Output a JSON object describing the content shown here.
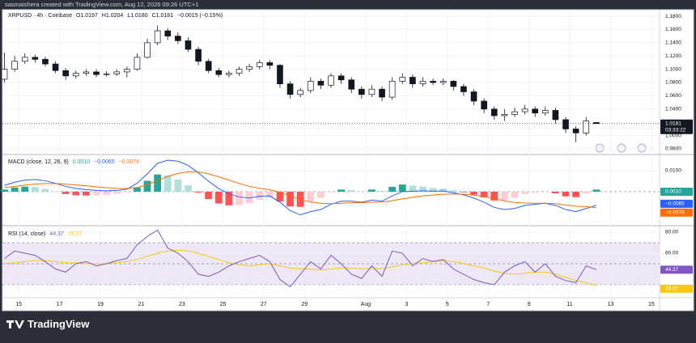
{
  "header": {
    "caption": "sasmaishera created with TradingView.com, Aug 12, 2026 09:26 UTC+1"
  },
  "footer": {
    "brand": "TradingView"
  },
  "chart_data": [
    {
      "type": "candlestick",
      "legend": [
        "XRPUSD · 4h · Coinbase",
        "O1.0197",
        "H1.0204",
        "L1.0180",
        "C1.0181",
        "−0.0015 (−0.15%)"
      ],
      "last_price_label": "1.0181",
      "countdown": "03:33:22",
      "xlim": [
        14.2,
        46.4
      ],
      "xticks": [
        15,
        17,
        19,
        21,
        23,
        25,
        27,
        29,
        {
          "value": 32,
          "label": "Aug"
        },
        {
          "value": 34,
          "label": "3"
        },
        {
          "value": 36,
          "label": "5"
        },
        {
          "value": 38,
          "label": "7"
        },
        {
          "value": 40,
          "label": "9"
        },
        {
          "value": 42,
          "label": "11"
        },
        {
          "value": 44,
          "label": "13"
        },
        {
          "value": 46,
          "label": "15"
        }
      ],
      "ylim": [
        0.9727,
        1.1898
      ],
      "yticks": [
        {
          "value": 1.18,
          "label": "1.1800"
        },
        {
          "value": 1.16,
          "label": "1.1600"
        },
        {
          "value": 1.14,
          "label": "1.1400"
        },
        {
          "value": 1.12,
          "label": "1.1200"
        },
        {
          "value": 1.1,
          "label": "1.1000"
        },
        {
          "value": 1.08,
          "label": "1.0800"
        },
        {
          "value": 1.06,
          "label": "1.0600"
        },
        {
          "value": 1.04,
          "label": "1.0400"
        },
        {
          "value": 1.02,
          "label": "1.0200"
        },
        {
          "value": 1.0,
          "label": "1.0000"
        },
        {
          "value": 0.98,
          "label": "0.9800"
        }
      ],
      "up_color": "#ffffff",
      "down_color": "#131722",
      "x": [
        14.3,
        14.8,
        15.3,
        15.8,
        16.3,
        16.8,
        17.3,
        17.8,
        18.3,
        18.8,
        19.3,
        19.8,
        20.3,
        20.8,
        21.3,
        21.8,
        22.3,
        22.8,
        23.3,
        23.8,
        24.3,
        24.8,
        25.3,
        25.8,
        26.3,
        26.8,
        27.3,
        27.8,
        28.3,
        28.8,
        29.3,
        29.8,
        30.3,
        30.8,
        31.3,
        31.8,
        32.3,
        32.8,
        33.3,
        33.8,
        34.3,
        34.8,
        35.3,
        35.8,
        36.3,
        36.8,
        37.3,
        37.8,
        38.3,
        38.8,
        39.3,
        39.8,
        40.3,
        40.8,
        41.3,
        41.8,
        42.3,
        42.8,
        43.3
      ],
      "candles": [
        [
          1.085,
          1.125,
          1.08,
          1.1
        ],
        [
          1.1,
          1.12,
          1.096,
          1.112
        ],
        [
          1.112,
          1.124,
          1.108,
          1.118
        ],
        [
          1.118,
          1.122,
          1.11,
          1.115
        ],
        [
          1.115,
          1.119,
          1.104,
          1.108
        ],
        [
          1.108,
          1.112,
          1.094,
          1.098
        ],
        [
          1.098,
          1.102,
          1.084,
          1.09
        ],
        [
          1.09,
          1.098,
          1.086,
          1.094
        ],
        [
          1.094,
          1.1,
          1.09,
          1.096
        ],
        [
          1.096,
          1.1,
          1.088,
          1.092
        ],
        [
          1.092,
          1.097,
          1.089,
          1.093
        ],
        [
          1.093,
          1.1,
          1.09,
          1.096
        ],
        [
          1.096,
          1.104,
          1.088,
          1.1
        ],
        [
          1.1,
          1.124,
          1.098,
          1.118
        ],
        [
          1.118,
          1.146,
          1.116,
          1.14
        ],
        [
          1.14,
          1.166,
          1.136,
          1.158
        ],
        [
          1.158,
          1.162,
          1.144,
          1.15
        ],
        [
          1.15,
          1.156,
          1.138,
          1.143
        ],
        [
          1.143,
          1.148,
          1.126,
          1.13
        ],
        [
          1.13,
          1.134,
          1.106,
          1.112
        ],
        [
          1.112,
          1.116,
          1.094,
          1.098
        ],
        [
          1.098,
          1.102,
          1.088,
          1.092
        ],
        [
          1.092,
          1.098,
          1.088,
          1.094
        ],
        [
          1.094,
          1.104,
          1.09,
          1.1
        ],
        [
          1.1,
          1.108,
          1.096,
          1.104
        ],
        [
          1.104,
          1.114,
          1.1,
          1.11
        ],
        [
          1.11,
          1.114,
          1.1,
          1.106
        ],
        [
          1.106,
          1.108,
          1.072,
          1.078
        ],
        [
          1.078,
          1.082,
          1.056,
          1.062
        ],
        [
          1.062,
          1.072,
          1.058,
          1.068
        ],
        [
          1.068,
          1.088,
          1.064,
          1.082
        ],
        [
          1.082,
          1.086,
          1.07,
          1.076
        ],
        [
          1.076,
          1.094,
          1.072,
          1.09
        ],
        [
          1.09,
          1.094,
          1.078,
          1.084
        ],
        [
          1.084,
          1.088,
          1.064,
          1.07
        ],
        [
          1.07,
          1.074,
          1.056,
          1.062
        ],
        [
          1.062,
          1.076,
          1.058,
          1.07
        ],
        [
          1.07,
          1.074,
          1.052,
          1.058
        ],
        [
          1.058,
          1.088,
          1.054,
          1.082
        ],
        [
          1.082,
          1.094,
          1.078,
          1.088
        ],
        [
          1.088,
          1.092,
          1.072,
          1.078
        ],
        [
          1.078,
          1.088,
          1.074,
          1.082
        ],
        [
          1.082,
          1.086,
          1.076,
          1.08
        ],
        [
          1.08,
          1.086,
          1.076,
          1.082
        ],
        [
          1.082,
          1.084,
          1.068,
          1.074
        ],
        [
          1.074,
          1.078,
          1.06,
          1.066
        ],
        [
          1.066,
          1.07,
          1.046,
          1.052
        ],
        [
          1.052,
          1.056,
          1.034,
          1.04
        ],
        [
          1.04,
          1.044,
          1.024,
          1.03
        ],
        [
          1.03,
          1.04,
          1.022,
          1.032
        ],
        [
          1.032,
          1.042,
          1.028,
          1.036
        ],
        [
          1.036,
          1.046,
          1.032,
          1.04
        ],
        [
          1.04,
          1.044,
          1.028,
          1.034
        ],
        [
          1.034,
          1.044,
          1.03,
          1.038
        ],
        [
          1.038,
          1.042,
          1.018,
          1.024
        ],
        [
          1.024,
          1.028,
          1.004,
          1.01
        ],
        [
          1.01,
          1.014,
          0.99,
          1.004
        ],
        [
          1.004,
          1.028,
          1.0,
          1.022
        ],
        [
          1.0197,
          1.0204,
          1.018,
          1.0181
        ]
      ]
    },
    {
      "type": "macd",
      "legend": [
        "MACD (close, 12, 26, 9)",
        "0.0010",
        "−0.0065",
        "−0.0076"
      ],
      "ylim": [
        -0.0158,
        0.0173
      ],
      "yticks": [
        {
          "value": 0.01,
          "label": "0.0100"
        }
      ],
      "zero_line": 0,
      "histogram_colors": [
        "#26a69a",
        "#b2dfdb",
        "#ffcdd2",
        "#ff5252"
      ],
      "series": [
        {
          "name": "MACD",
          "color": "#2962ff",
          "values": [
            0.003,
            0.0045,
            0.0055,
            0.0058,
            0.0052,
            0.004,
            0.0025,
            0.0015,
            0.001,
            0.0006,
            0.0004,
            0.0006,
            0.0012,
            0.004,
            0.0085,
            0.0135,
            0.015,
            0.0145,
            0.0125,
            0.009,
            0.005,
            0.0015,
            -0.001,
            -0.0025,
            -0.003,
            -0.0022,
            -0.002,
            -0.005,
            -0.009,
            -0.011,
            -0.0095,
            -0.0085,
            -0.006,
            -0.0045,
            -0.0045,
            -0.005,
            -0.004,
            -0.0045,
            -0.002,
            0,
            0.0002,
            0.0004,
            0.0002,
            0.0003,
            -0.0005,
            -0.0015,
            -0.003,
            -0.005,
            -0.0075,
            -0.0085,
            -0.008,
            -0.0065,
            -0.006,
            -0.0055,
            -0.0065,
            -0.0085,
            -0.0095,
            -0.008,
            -0.0065
          ]
        },
        {
          "name": "Signal",
          "color": "#ff6d00",
          "values": [
            0.002,
            0.0025,
            0.0031,
            0.0036,
            0.0039,
            0.0039,
            0.0036,
            0.0032,
            0.0028,
            0.0023,
            0.0019,
            0.0016,
            0.0015,
            0.002,
            0.0033,
            0.0053,
            0.0073,
            0.0087,
            0.0095,
            0.0094,
            0.0085,
            0.0071,
            0.0055,
            0.0039,
            0.0025,
            0.0016,
            0.0009,
            -0.0003,
            -0.002,
            -0.0038,
            -0.0049,
            -0.0056,
            -0.0057,
            -0.0055,
            -0.0053,
            -0.0052,
            -0.005,
            -0.0049,
            -0.0043,
            -0.0034,
            -0.0027,
            -0.002,
            -0.0016,
            -0.0012,
            -0.0011,
            -0.0012,
            -0.0016,
            -0.0023,
            -0.0033,
            -0.0044,
            -0.0051,
            -0.0054,
            -0.0055,
            -0.0055,
            -0.0057,
            -0.0063,
            -0.0069,
            -0.0071,
            -0.0076
          ]
        },
        {
          "name": "Histogram",
          "color": "#26a69a",
          "values": [
            0.001,
            0.002,
            0.0024,
            0.0022,
            0.0013,
            0.0001,
            -0.0011,
            -0.0017,
            -0.0018,
            -0.0017,
            -0.0015,
            -0.001,
            -0.0003,
            0.002,
            0.0052,
            0.0082,
            0.0077,
            0.0058,
            0.003,
            -0.0004,
            -0.0035,
            -0.0056,
            -0.0065,
            -0.0064,
            -0.0055,
            -0.0038,
            -0.0029,
            -0.0047,
            -0.007,
            -0.0072,
            -0.0046,
            -0.0029,
            -0.0003,
            0.001,
            0.0008,
            0.0002,
            0.001,
            0.0004,
            0.0023,
            0.0034,
            0.0029,
            0.0024,
            0.0018,
            0.0015,
            0.0006,
            -0.0003,
            -0.0014,
            -0.0027,
            -0.0042,
            -0.0041,
            -0.0029,
            -0.0011,
            -0.0005,
            0,
            -0.0008,
            -0.0022,
            -0.0026,
            -0.0009,
            0.001
          ]
        }
      ]
    },
    {
      "type": "rsi",
      "legend": [
        "RSI (14, close)",
        "44.37",
        "29.37"
      ],
      "ylim": [
        17.7,
        85.4
      ],
      "yticks": [
        {
          "value": 80,
          "label": "80.00"
        },
        {
          "value": 60,
          "label": "60.00"
        }
      ],
      "levels": [
        70,
        50,
        30
      ],
      "band_color": "#ede7f6",
      "series": [
        {
          "name": "RSI",
          "color": "#7e57c2",
          "values": [
            55,
            62,
            60,
            58,
            52,
            45,
            42,
            50,
            52,
            48,
            50,
            53,
            55,
            68,
            76,
            82,
            65,
            60,
            52,
            40,
            38,
            42,
            48,
            52,
            55,
            58,
            52,
            35,
            28,
            40,
            52,
            45,
            58,
            50,
            40,
            36,
            48,
            38,
            62,
            60,
            48,
            55,
            52,
            54,
            45,
            40,
            35,
            32,
            30,
            42,
            48,
            52,
            42,
            50,
            38,
            34,
            32,
            48,
            44.37
          ]
        },
        {
          "name": "RSI-based MA",
          "color": "#f9c80e",
          "values": [
            50,
            51,
            52,
            53,
            53,
            52,
            51,
            51,
            50,
            50,
            50,
            51,
            52,
            54,
            57,
            60,
            62,
            63,
            62,
            60,
            57,
            54,
            51,
            49,
            48,
            49,
            50,
            48,
            46,
            45,
            45,
            44,
            45,
            46,
            46,
            45,
            46,
            45,
            47,
            49,
            50,
            51,
            52,
            53,
            52,
            50,
            48,
            46,
            43,
            41,
            40,
            41,
            42,
            42,
            40,
            37,
            34,
            32,
            29.37
          ]
        }
      ]
    }
  ]
}
